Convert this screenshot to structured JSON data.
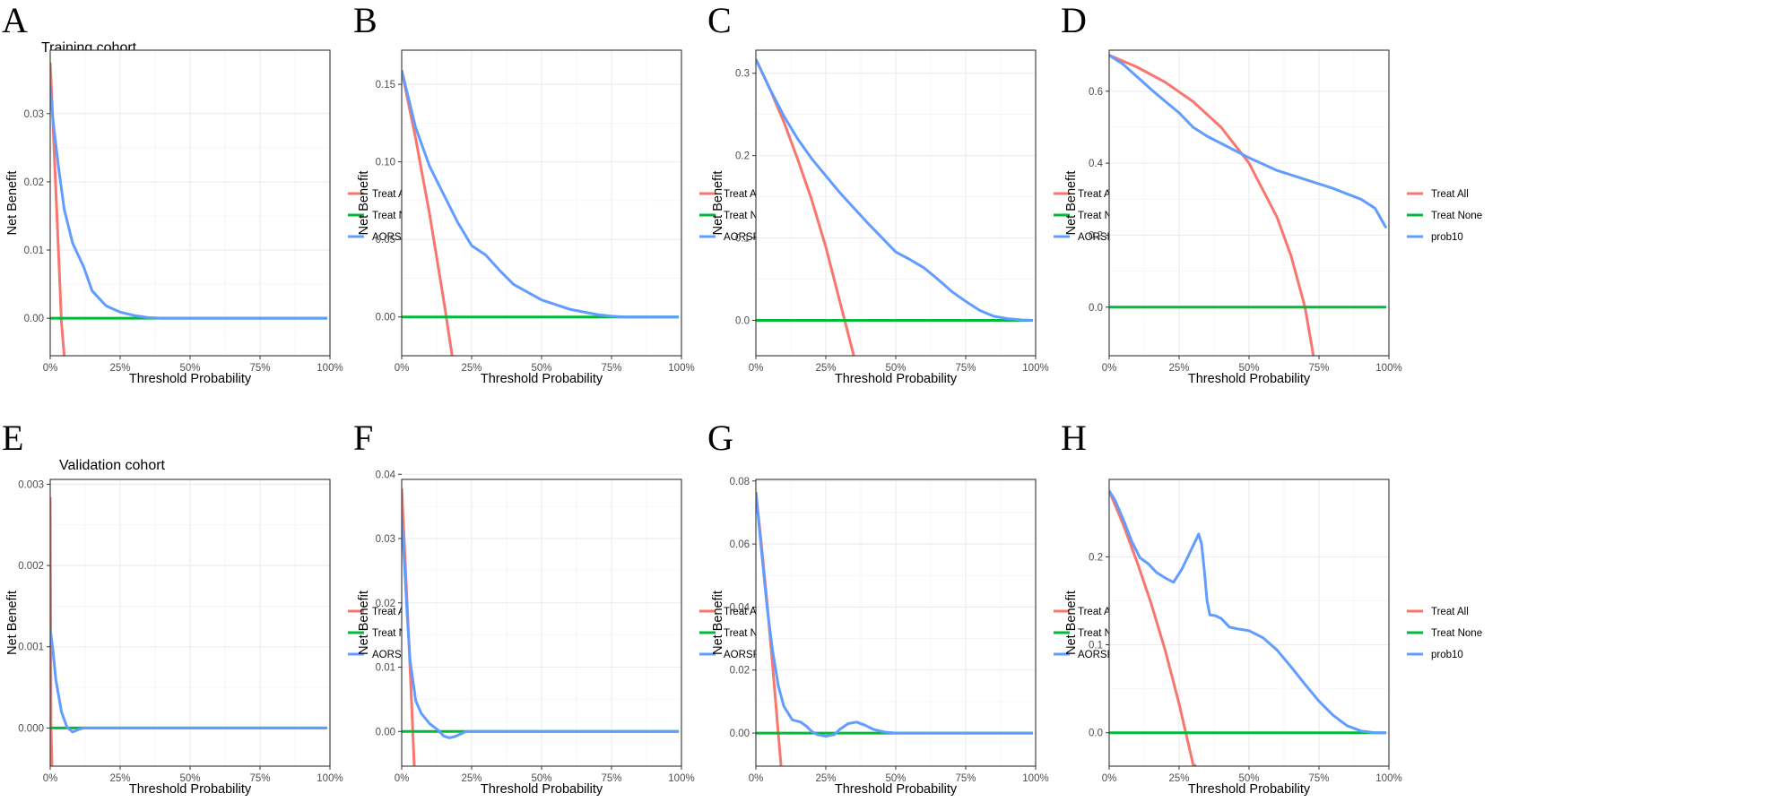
{
  "figure": {
    "row_labels": [
      "Training cohort",
      "Validation cohort"
    ],
    "colors": {
      "treat_all": "#F8766D",
      "treat_none": "#00BA38",
      "model": "#619CFF"
    }
  },
  "chart_data": [
    {
      "type": "line",
      "panel": "A",
      "cohort": "Training cohort",
      "xlabel": "Threshold Probability",
      "ylabel": "Net Benefit",
      "xlim": [
        0,
        1
      ],
      "ylim": [
        -0.0055,
        0.0393
      ],
      "xticks": [
        0,
        0.25,
        0.5,
        0.75,
        1
      ],
      "xtick_labels": [
        "0%",
        "25%",
        "50%",
        "75%",
        "100%"
      ],
      "yticks": [
        0,
        0.01,
        0.02,
        0.03
      ],
      "ytick_labels": [
        "0.00",
        "0.01",
        "0.02",
        "0.03"
      ],
      "series": [
        {
          "name": "Treat All",
          "x": [
            0,
            0.01,
            0.02,
            0.03,
            0.04,
            0.05
          ],
          "y": [
            0.0375,
            0.0285,
            0.019,
            0.0093,
            -0.0005,
            -0.0055
          ]
        },
        {
          "name": "Treat None",
          "x": [
            0,
            0.99
          ],
          "y": [
            0,
            0
          ]
        },
        {
          "name": "AORSF",
          "x": [
            0,
            0.01,
            0.03,
            0.05,
            0.08,
            0.12,
            0.15,
            0.2,
            0.25,
            0.3,
            0.35,
            0.4,
            0.99
          ],
          "y": [
            0.034,
            0.029,
            0.022,
            0.016,
            0.011,
            0.0075,
            0.004,
            0.0018,
            0.0009,
            0.0004,
            0.0001,
            0,
            0
          ]
        }
      ]
    },
    {
      "type": "line",
      "panel": "B",
      "xlabel": "Threshold Probability",
      "ylabel": "Net Benefit",
      "xlim": [
        0,
        1
      ],
      "ylim": [
        -0.025,
        0.172
      ],
      "xticks": [
        0,
        0.25,
        0.5,
        0.75,
        1
      ],
      "xtick_labels": [
        "0%",
        "25%",
        "50%",
        "75%",
        "100%"
      ],
      "yticks": [
        0,
        0.05,
        0.1,
        0.15
      ],
      "ytick_labels": [
        "0.00",
        "0.05",
        "0.10",
        "0.15"
      ],
      "series": [
        {
          "name": "Treat All",
          "x": [
            0,
            0.05,
            0.1,
            0.15,
            0.18
          ],
          "y": [
            0.159,
            0.115,
            0.066,
            0.011,
            -0.025
          ]
        },
        {
          "name": "Treat None",
          "x": [
            0,
            0.99
          ],
          "y": [
            0,
            0
          ]
        },
        {
          "name": "AORSF",
          "x": [
            0,
            0.05,
            0.1,
            0.15,
            0.2,
            0.25,
            0.3,
            0.35,
            0.4,
            0.5,
            0.6,
            0.7,
            0.75,
            0.8,
            0.99
          ],
          "y": [
            0.159,
            0.122,
            0.097,
            0.079,
            0.061,
            0.046,
            0.04,
            0.03,
            0.021,
            0.011,
            0.005,
            0.0015,
            0.0005,
            0,
            0
          ]
        }
      ]
    },
    {
      "type": "line",
      "panel": "C",
      "xlabel": "Threshold Probability",
      "ylabel": "Net Benefit",
      "xlim": [
        0,
        1
      ],
      "ylim": [
        -0.043,
        0.328
      ],
      "xticks": [
        0,
        0.25,
        0.5,
        0.75,
        1
      ],
      "xtick_labels": [
        "0%",
        "25%",
        "50%",
        "75%",
        "100%"
      ],
      "yticks": [
        0,
        0.1,
        0.2,
        0.3
      ],
      "ytick_labels": [
        "0.0",
        "0.1",
        "0.2",
        "0.3"
      ],
      "series": [
        {
          "name": "Treat All",
          "x": [
            0,
            0.05,
            0.1,
            0.15,
            0.2,
            0.25,
            0.3,
            0.35
          ],
          "y": [
            0.317,
            0.281,
            0.241,
            0.195,
            0.146,
            0.089,
            0.023,
            -0.043
          ]
        },
        {
          "name": "Treat None",
          "x": [
            0,
            0.99
          ],
          "y": [
            0,
            0
          ]
        },
        {
          "name": "AORSF",
          "x": [
            0,
            0.05,
            0.1,
            0.15,
            0.2,
            0.3,
            0.4,
            0.5,
            0.55,
            0.6,
            0.65,
            0.7,
            0.75,
            0.8,
            0.85,
            0.9,
            0.95,
            0.99
          ],
          "y": [
            0.317,
            0.281,
            0.248,
            0.22,
            0.196,
            0.155,
            0.118,
            0.083,
            0.074,
            0.064,
            0.05,
            0.035,
            0.023,
            0.012,
            0.005,
            0.002,
            0.0005,
            0
          ]
        }
      ]
    },
    {
      "type": "line",
      "panel": "D",
      "xlabel": "Threshold Probability",
      "ylabel": "Net Benefit",
      "xlim": [
        0,
        1
      ],
      "ylim": [
        -0.135,
        0.714
      ],
      "xticks": [
        0,
        0.25,
        0.5,
        0.75,
        1
      ],
      "xtick_labels": [
        "0%",
        "25%",
        "50%",
        "75%",
        "100%"
      ],
      "yticks": [
        0,
        0.2,
        0.4,
        0.6
      ],
      "ytick_labels": [
        "0.0",
        "0.2",
        "0.4",
        "0.6"
      ],
      "series": [
        {
          "name": "Treat All",
          "x": [
            0,
            0.1,
            0.2,
            0.3,
            0.4,
            0.5,
            0.6,
            0.65,
            0.7,
            0.73
          ],
          "y": [
            0.7,
            0.667,
            0.625,
            0.571,
            0.5,
            0.4,
            0.25,
            0.143,
            0,
            -0.135
          ]
        },
        {
          "name": "Treat None",
          "x": [
            0,
            0.99
          ],
          "y": [
            0,
            0
          ]
        },
        {
          "name": "prob10",
          "x": [
            0,
            0.05,
            0.1,
            0.15,
            0.2,
            0.25,
            0.3,
            0.35,
            0.4,
            0.5,
            0.6,
            0.7,
            0.8,
            0.85,
            0.9,
            0.95,
            0.99
          ],
          "y": [
            0.7,
            0.675,
            0.64,
            0.605,
            0.572,
            0.54,
            0.5,
            0.475,
            0.455,
            0.415,
            0.38,
            0.355,
            0.33,
            0.315,
            0.3,
            0.275,
            0.22
          ]
        }
      ]
    },
    {
      "type": "line",
      "panel": "E",
      "cohort": "Validation cohort",
      "xlabel": "Threshold Probability",
      "ylabel": "Net Benefit",
      "xlim": [
        0,
        1
      ],
      "ylim": [
        -0.00047,
        0.00306
      ],
      "xticks": [
        0,
        0.25,
        0.5,
        0.75,
        1
      ],
      "xtick_labels": [
        "0%",
        "25%",
        "50%",
        "75%",
        "100%"
      ],
      "yticks": [
        0,
        0.001,
        0.002,
        0.003
      ],
      "ytick_labels": [
        "0.000",
        "0.001",
        "0.002",
        "0.003"
      ],
      "series": [
        {
          "name": "Treat All",
          "x": [
            0,
            0.003,
            0.006
          ],
          "y": [
            0.00284,
            3e-05,
            -0.00047
          ]
        },
        {
          "name": "Treat None",
          "x": [
            0,
            0.99
          ],
          "y": [
            0,
            0
          ]
        },
        {
          "name": "AORSF",
          "x": [
            0,
            0.01,
            0.02,
            0.04,
            0.06,
            0.08,
            0.1,
            0.12,
            0.99
          ],
          "y": [
            0.00122,
            0.00095,
            0.0006,
            0.0002,
            1e-05,
            -5e-05,
            -2e-05,
            0,
            0
          ]
        }
      ]
    },
    {
      "type": "line",
      "panel": "F",
      "xlabel": "Threshold Probability",
      "ylabel": "Net Benefit",
      "xlim": [
        0,
        1
      ],
      "ylim": [
        -0.0054,
        0.0392
      ],
      "xticks": [
        0,
        0.25,
        0.5,
        0.75,
        1
      ],
      "xtick_labels": [
        "0%",
        "25%",
        "50%",
        "75%",
        "100%"
      ],
      "yticks": [
        0,
        0.01,
        0.02,
        0.03,
        0.04
      ],
      "ytick_labels": [
        "0.00",
        "0.01",
        "0.02",
        "0.03",
        "0.04"
      ],
      "series": [
        {
          "name": "Treat All",
          "x": [
            0,
            0.01,
            0.02,
            0.03,
            0.04,
            0.045
          ],
          "y": [
            0.0378,
            0.0288,
            0.0194,
            0.0097,
            -0.0004,
            -0.0054
          ]
        },
        {
          "name": "Treat None",
          "x": [
            0,
            0.99
          ],
          "y": [
            0,
            0
          ]
        },
        {
          "name": "AORSF",
          "x": [
            0,
            0.01,
            0.02,
            0.03,
            0.05,
            0.07,
            0.1,
            0.13,
            0.15,
            0.17,
            0.19,
            0.21,
            0.23,
            0.25,
            0.99
          ],
          "y": [
            0.0333,
            0.026,
            0.018,
            0.011,
            0.0048,
            0.0028,
            0.0012,
            0.0002,
            -0.0007,
            -0.001,
            -0.0008,
            -0.0004,
            0,
            0,
            0
          ]
        }
      ]
    },
    {
      "type": "line",
      "panel": "G",
      "xlabel": "Threshold Probability",
      "ylabel": "Net Benefit",
      "xlim": [
        0,
        1
      ],
      "ylim": [
        -0.0105,
        0.0805
      ],
      "xticks": [
        0,
        0.25,
        0.5,
        0.75,
        1
      ],
      "xtick_labels": [
        "0%",
        "25%",
        "50%",
        "75%",
        "100%"
      ],
      "yticks": [
        0,
        0.02,
        0.04,
        0.06,
        0.08
      ],
      "ytick_labels": [
        "0.00",
        "0.02",
        "0.04",
        "0.06",
        "0.08"
      ],
      "series": [
        {
          "name": "Treat All",
          "x": [
            0,
            0.02,
            0.04,
            0.06,
            0.08,
            0.09
          ],
          "y": [
            0.0765,
            0.0598,
            0.0413,
            0.0213,
            -0.0002,
            -0.0105
          ]
        },
        {
          "name": "Treat None",
          "x": [
            0,
            0.99
          ],
          "y": [
            0,
            0
          ]
        },
        {
          "name": "AORSF",
          "x": [
            0,
            0.02,
            0.04,
            0.06,
            0.08,
            0.1,
            0.13,
            0.16,
            0.18,
            0.2,
            0.22,
            0.25,
            0.28,
            0.3,
            0.33,
            0.36,
            0.39,
            0.42,
            0.46,
            0.5,
            0.99
          ],
          "y": [
            0.0765,
            0.058,
            0.04,
            0.026,
            0.015,
            0.0085,
            0.0042,
            0.0035,
            0.0022,
            0.0005,
            -0.0005,
            -0.001,
            -0.0005,
            0.0012,
            0.003,
            0.0035,
            0.0025,
            0.0012,
            0.0003,
            0,
            0
          ]
        }
      ]
    },
    {
      "type": "line",
      "panel": "H",
      "xlabel": "Threshold Probability",
      "ylabel": "Net Benefit",
      "xlim": [
        0,
        1
      ],
      "ylim": [
        -0.038,
        0.288
      ],
      "xticks": [
        0,
        0.25,
        0.5,
        0.75,
        1
      ],
      "xtick_labels": [
        "0%",
        "25%",
        "50%",
        "75%",
        "100%"
      ],
      "yticks": [
        0,
        0.1,
        0.2
      ],
      "ytick_labels": [
        "0.0",
        "0.1",
        "0.2"
      ],
      "series": [
        {
          "name": "Treat All",
          "x": [
            0,
            0.05,
            0.1,
            0.15,
            0.2,
            0.25,
            0.3,
            0.31
          ],
          "y": [
            0.275,
            0.237,
            0.194,
            0.147,
            0.094,
            0.033,
            -0.036,
            -0.038
          ]
        },
        {
          "name": "Treat None",
          "x": [
            0,
            0.99
          ],
          "y": [
            0,
            0
          ]
        },
        {
          "name": "prob10",
          "x": [
            0,
            0.02,
            0.05,
            0.08,
            0.11,
            0.14,
            0.17,
            0.2,
            0.23,
            0.26,
            0.29,
            0.31,
            0.32,
            0.33,
            0.34,
            0.35,
            0.36,
            0.38,
            0.4,
            0.43,
            0.46,
            0.5,
            0.55,
            0.6,
            0.65,
            0.7,
            0.75,
            0.8,
            0.85,
            0.9,
            0.95,
            0.99
          ],
          "y": [
            0.275,
            0.265,
            0.243,
            0.218,
            0.199,
            0.192,
            0.182,
            0.176,
            0.171,
            0.186,
            0.206,
            0.219,
            0.226,
            0.215,
            0.185,
            0.15,
            0.134,
            0.133,
            0.13,
            0.12,
            0.118,
            0.116,
            0.108,
            0.094,
            0.075,
            0.055,
            0.036,
            0.02,
            0.008,
            0.002,
            0,
            0
          ]
        }
      ]
    }
  ]
}
